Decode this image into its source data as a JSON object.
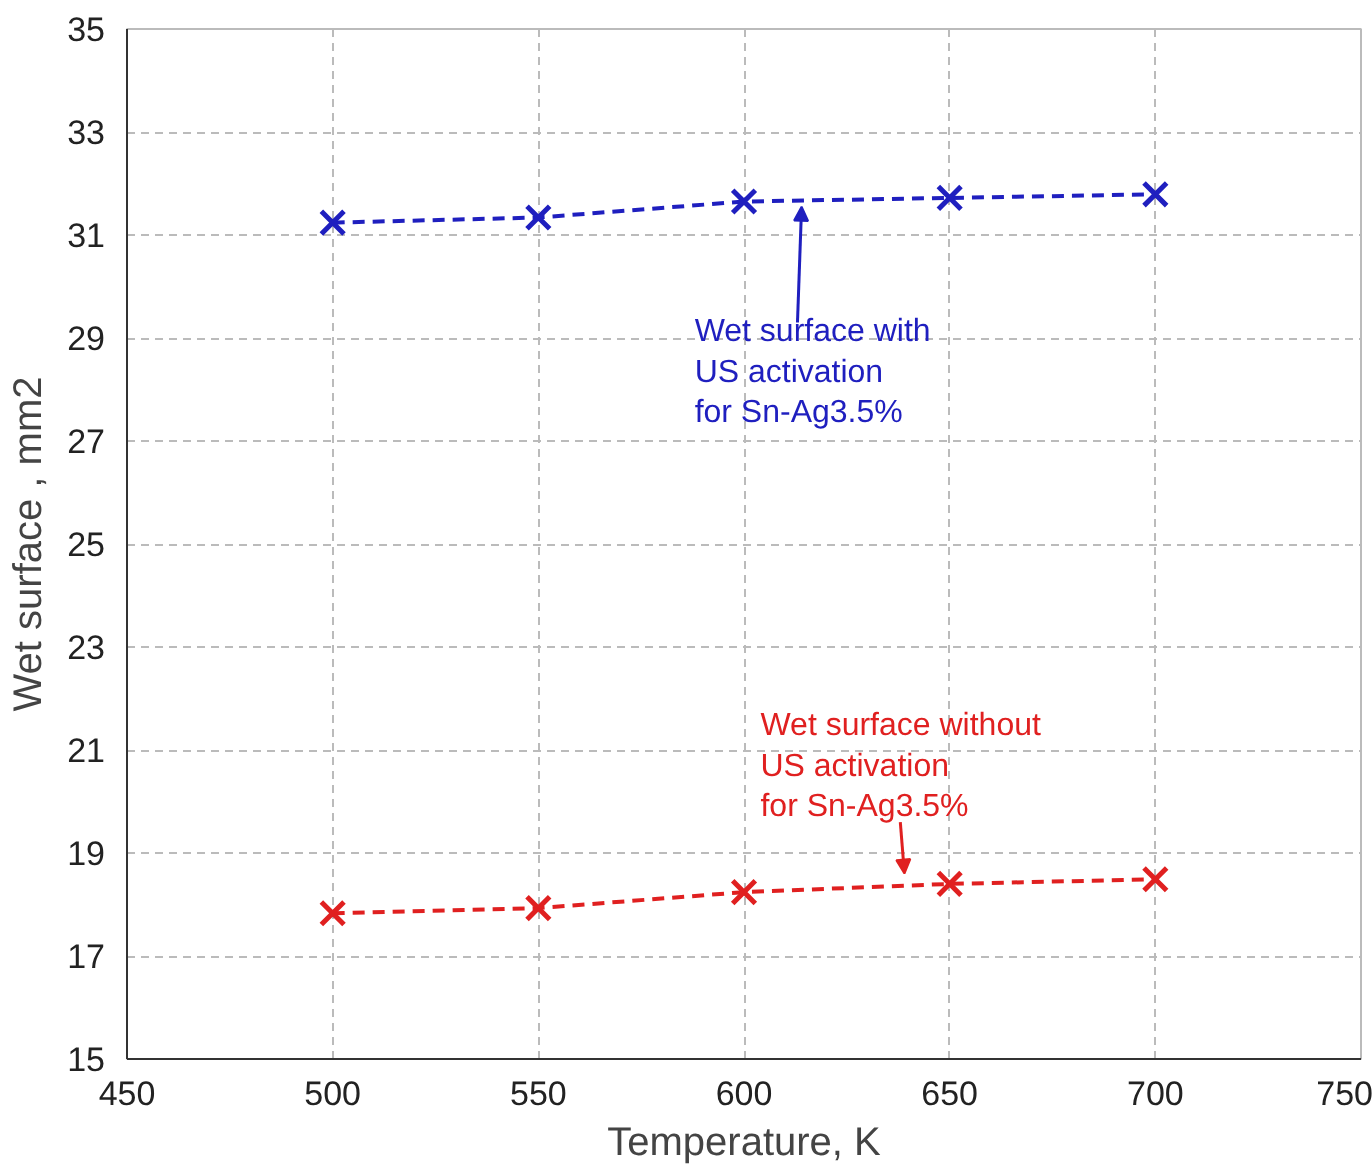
{
  "chart_data": {
    "type": "line",
    "xlabel": "Temperature, K",
    "ylabel": "Wet surface , mm2",
    "x": [
      500,
      550,
      600,
      650,
      700
    ],
    "series": [
      {
        "color": "#1f1fbf",
        "marker": "cross",
        "values": [
          31.24,
          31.34,
          31.65,
          31.72,
          31.79
        ]
      },
      {
        "color": "#e02020",
        "marker": "cross",
        "values": [
          17.83,
          17.93,
          18.24,
          18.4,
          18.49
        ]
      }
    ],
    "annotations": [
      {
        "text": "Wet surface with\nUS activation\nfor Sn-Ag3.5%",
        "x": 614,
        "y": 31.55
      },
      {
        "text": "Wet surface without\nUS activation\nfor Sn-Ag3.5%",
        "x": 639,
        "y": 18.6
      }
    ],
    "xlim": [
      450,
      750
    ],
    "xticks": [
      450,
      500,
      550,
      600,
      650,
      700,
      750
    ],
    "ylim": [
      15,
      35
    ],
    "yticks": [
      15,
      17,
      19,
      21,
      23,
      25,
      27,
      29,
      31,
      33,
      35
    ],
    "grid": true,
    "line_style": "dashed"
  }
}
